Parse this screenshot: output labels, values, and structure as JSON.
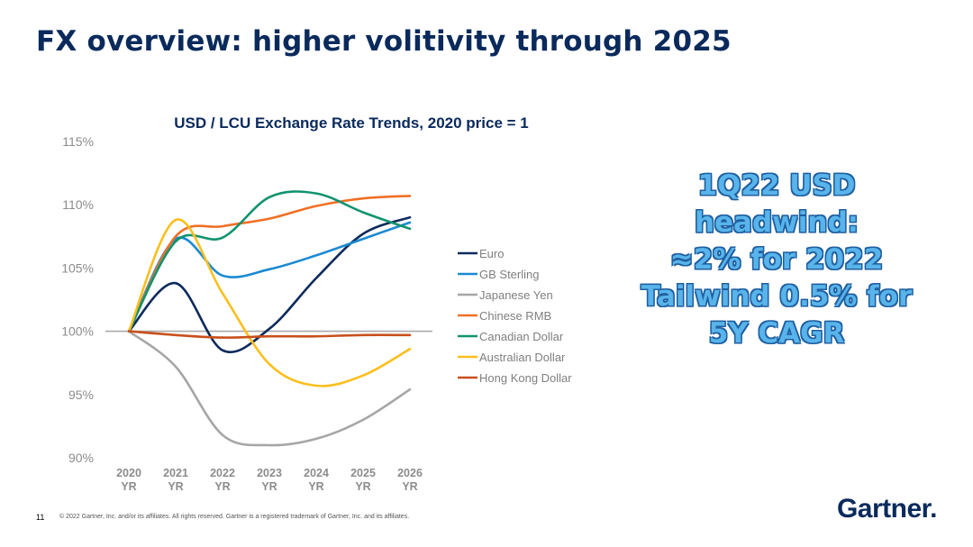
{
  "slide": {
    "title": "FX overview: higher volitivity through 2025",
    "callout_lines": [
      "1Q22 USD",
      "headwind:",
      "≈2% for 2022",
      "Tailwind 0.5% for",
      "5Y CAGR"
    ],
    "page_number": "11",
    "footer": "© 2022 Gartner, Inc. and/or its affiliates. All rights reserved. Gartner is a registered trademark of Gartner, Inc. and its affiliates.",
    "logo_text": "Gartner",
    "logo_mark": "."
  },
  "chart_data": {
    "type": "line",
    "title": "USD / LCU Exchange Rate Trends, 2020 price = 1",
    "xlabel": "",
    "ylabel": "",
    "categories": [
      [
        "2020",
        "YR"
      ],
      [
        "2021",
        "YR"
      ],
      [
        "2022",
        "YR"
      ],
      [
        "2023",
        "YR"
      ],
      [
        "2024",
        "YR"
      ],
      [
        "2025",
        "YR"
      ],
      [
        "2026",
        "YR"
      ]
    ],
    "ylim": [
      90,
      115
    ],
    "yticks": [
      90,
      95,
      100,
      105,
      110,
      115
    ],
    "ytick_labels": [
      "90%",
      "95%",
      "100%",
      "105%",
      "110%",
      "115%"
    ],
    "reference_line": 100,
    "reference_color": "#aaaaaa",
    "grid": false,
    "legend_position": "right",
    "series": [
      {
        "name": "Euro",
        "color": "#0d2a5c",
        "values": [
          100,
          103.8,
          98.5,
          100.2,
          104.2,
          107.7,
          109.0
        ]
      },
      {
        "name": "GB Sterling",
        "color": "#1b8ad1",
        "values": [
          100,
          107.3,
          104.4,
          104.9,
          106.0,
          107.3,
          108.6
        ]
      },
      {
        "name": "Japanese Yen",
        "color": "#a6a6a6",
        "values": [
          100,
          97.2,
          91.8,
          91.0,
          91.5,
          93.0,
          95.4
        ]
      },
      {
        "name": "Chinese RMB",
        "color": "#f07026",
        "values": [
          100,
          107.5,
          108.3,
          108.9,
          109.9,
          110.5,
          110.7
        ]
      },
      {
        "name": "Canadian Dollar",
        "color": "#12936f",
        "values": [
          100,
          107.1,
          107.4,
          110.6,
          110.9,
          109.4,
          108.1
        ]
      },
      {
        "name": "Australian Dollar",
        "color": "#fbbf1d",
        "values": [
          100,
          108.8,
          103.0,
          97.4,
          95.7,
          96.5,
          98.6
        ]
      },
      {
        "name": "Hong Kong Dollar",
        "color": "#c8501c",
        "values": [
          100,
          99.7,
          99.5,
          99.6,
          99.6,
          99.7,
          99.7
        ]
      }
    ]
  }
}
